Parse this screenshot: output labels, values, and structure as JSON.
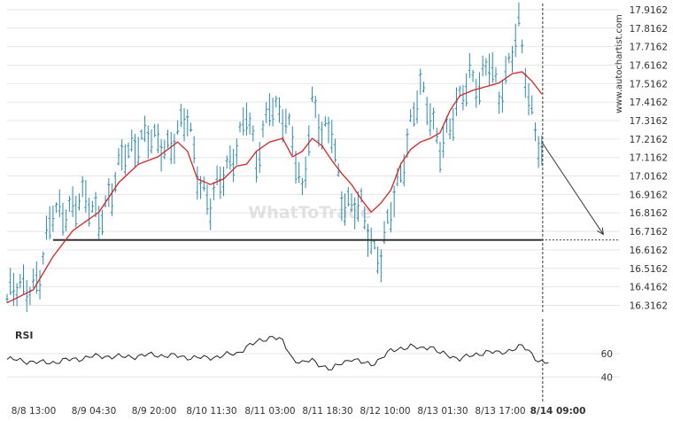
{
  "chart_data": [
    {
      "type": "ohlc",
      "title": "",
      "watermark": "WhatToTrade",
      "side_label": "www.autochartist.com",
      "y_ticks": [
        "17.9162",
        "17.8162",
        "17.7162",
        "17.6162",
        "17.5162",
        "17.4162",
        "17.3162",
        "17.2162",
        "17.1162",
        "17.0162",
        "16.9162",
        "16.8162",
        "16.7162",
        "16.6162",
        "16.5162",
        "16.4162",
        "16.3162"
      ],
      "ylim": [
        16.28,
        17.94
      ],
      "x_ticks": [
        "8/8 13:00",
        "8/9 04:30",
        "8/9 20:00",
        "8/10 11:30",
        "8/11 03:00",
        "8/11 18:30",
        "8/12 10:00",
        "8/13 01:30",
        "8/13 17:00",
        "8/14 09:00"
      ],
      "x_ticks_highlight": "8/14 09:00",
      "support_level": 16.67,
      "forecast_target": 16.67,
      "grid": true,
      "colors": {
        "bars": "#2a8bb0",
        "moving_average": "#e02020",
        "support": "#333333",
        "forecast": "#333333",
        "grid": "#e6e6e6"
      },
      "price_waypoints": [
        [
          0,
          16.35
        ],
        [
          5,
          16.4
        ],
        [
          10,
          16.48
        ],
        [
          14,
          16.8
        ],
        [
          18,
          16.85
        ],
        [
          24,
          16.86
        ],
        [
          28,
          16.82
        ],
        [
          32,
          16.9
        ],
        [
          36,
          17.15
        ],
        [
          40,
          17.22
        ],
        [
          45,
          17.18
        ],
        [
          50,
          17.2
        ],
        [
          55,
          17.3
        ],
        [
          58,
          17.05
        ],
        [
          62,
          16.85
        ],
        [
          66,
          17.0
        ],
        [
          70,
          17.2
        ],
        [
          73,
          17.35
        ],
        [
          76,
          17.05
        ],
        [
          80,
          17.45
        ],
        [
          84,
          17.3
        ],
        [
          87,
          17.2
        ],
        [
          90,
          16.95
        ],
        [
          93,
          17.4
        ],
        [
          96,
          17.2
        ],
        [
          99,
          17.3
        ],
        [
          102,
          16.9
        ],
        [
          105,
          16.8
        ],
        [
          108,
          16.85
        ],
        [
          110,
          16.75
        ],
        [
          112,
          16.62
        ],
        [
          114,
          16.55
        ],
        [
          117,
          16.8
        ],
        [
          120,
          17.05
        ],
        [
          123,
          17.3
        ],
        [
          126,
          17.45
        ],
        [
          129,
          17.35
        ],
        [
          132,
          17.2
        ],
        [
          135,
          17.25
        ],
        [
          138,
          17.4
        ],
        [
          141,
          17.6
        ],
        [
          144,
          17.5
        ],
        [
          147,
          17.6
        ],
        [
          150,
          17.45
        ],
        [
          153,
          17.65
        ],
        [
          156,
          17.8
        ],
        [
          159,
          17.4
        ],
        [
          161,
          17.3
        ],
        [
          163,
          17.15
        ]
      ],
      "moving_average": [
        [
          0,
          16.33
        ],
        [
          8,
          16.4
        ],
        [
          14,
          16.58
        ],
        [
          20,
          16.72
        ],
        [
          28,
          16.82
        ],
        [
          34,
          16.98
        ],
        [
          40,
          17.08
        ],
        [
          46,
          17.12
        ],
        [
          52,
          17.2
        ],
        [
          55,
          17.15
        ],
        [
          58,
          17.0
        ],
        [
          62,
          16.97
        ],
        [
          66,
          17.0
        ],
        [
          70,
          17.07
        ],
        [
          73,
          17.08
        ],
        [
          76,
          17.15
        ],
        [
          80,
          17.2
        ],
        [
          84,
          17.22
        ],
        [
          87,
          17.12
        ],
        [
          90,
          17.15
        ],
        [
          93,
          17.22
        ],
        [
          96,
          17.18
        ],
        [
          99,
          17.1
        ],
        [
          102,
          17.03
        ],
        [
          105,
          16.97
        ],
        [
          108,
          16.89
        ],
        [
          111,
          16.82
        ],
        [
          114,
          16.87
        ],
        [
          117,
          16.94
        ],
        [
          120,
          17.08
        ],
        [
          123,
          17.16
        ],
        [
          126,
          17.2
        ],
        [
          129,
          17.22
        ],
        [
          132,
          17.25
        ],
        [
          135,
          17.37
        ],
        [
          138,
          17.45
        ],
        [
          142,
          17.48
        ],
        [
          146,
          17.5
        ],
        [
          150,
          17.52
        ],
        [
          154,
          17.57
        ],
        [
          157,
          17.58
        ],
        [
          160,
          17.53
        ],
        [
          163,
          17.46
        ]
      ],
      "forecast_arrow": {
        "from": [
          163,
          17.2
        ],
        "to": [
          175,
          16.7
        ]
      }
    },
    {
      "type": "line",
      "title": "RSI",
      "y_ticks": [
        "60",
        "40"
      ],
      "ylim": [
        25,
        82
      ],
      "rsi_waypoints": [
        [
          0,
          55
        ],
        [
          5,
          54
        ],
        [
          10,
          52
        ],
        [
          15,
          53
        ],
        [
          20,
          55
        ],
        [
          25,
          57
        ],
        [
          30,
          58
        ],
        [
          35,
          57
        ],
        [
          40,
          58
        ],
        [
          45,
          59
        ],
        [
          50,
          58
        ],
        [
          55,
          57
        ],
        [
          60,
          56
        ],
        [
          65,
          58
        ],
        [
          70,
          60
        ],
        [
          73,
          66
        ],
        [
          75,
          68
        ],
        [
          78,
          72
        ],
        [
          81,
          75
        ],
        [
          84,
          70
        ],
        [
          87,
          56
        ],
        [
          90,
          52
        ],
        [
          93,
          54
        ],
        [
          96,
          50
        ],
        [
          99,
          46
        ],
        [
          102,
          52
        ],
        [
          105,
          56
        ],
        [
          108,
          52
        ],
        [
          111,
          51
        ],
        [
          114,
          56
        ],
        [
          117,
          62
        ],
        [
          120,
          65
        ],
        [
          123,
          66
        ],
        [
          126,
          64
        ],
        [
          129,
          67
        ],
        [
          132,
          60
        ],
        [
          135,
          58
        ],
        [
          138,
          56
        ],
        [
          142,
          58
        ],
        [
          146,
          62
        ],
        [
          150,
          60
        ],
        [
          154,
          64
        ],
        [
          157,
          66
        ],
        [
          160,
          60
        ],
        [
          162,
          54
        ],
        [
          164,
          52
        ]
      ]
    }
  ]
}
